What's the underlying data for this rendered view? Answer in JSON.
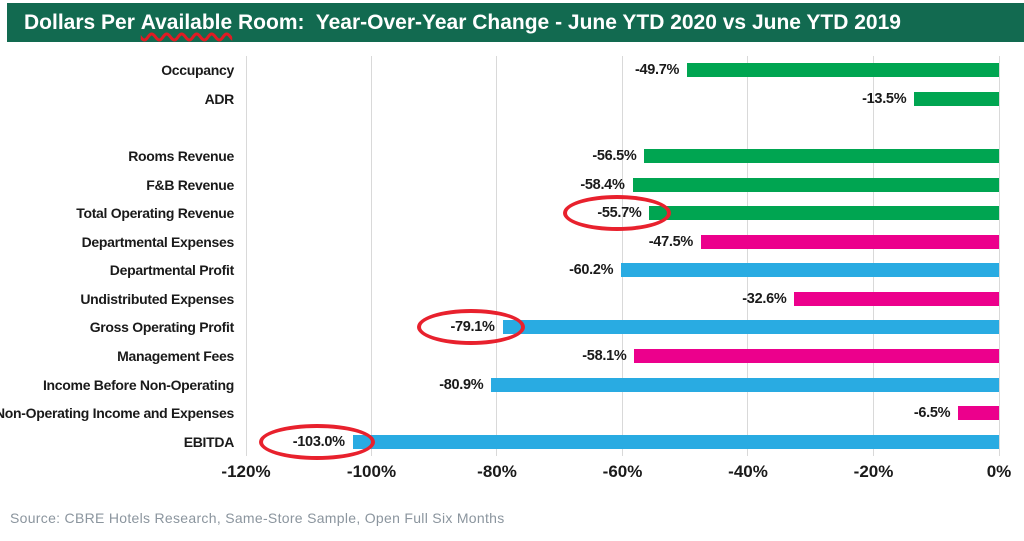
{
  "title_parts": {
    "pre": "Dollars Per ",
    "underlined": "Available",
    "post": " Room:  Year-Over-Year Change - June YTD 2020 vs June YTD 2019"
  },
  "source": "Source: CBRE Hotels Research, Same-Store Sample, Open Full Six Months",
  "colors": {
    "title_bg": "#126A50",
    "title_text": "#FFFFFF",
    "green": "#00A551",
    "pink": "#EC008C",
    "blue": "#29ABE2",
    "highlight_red": "#E8212D",
    "misspell_underline": "#E01B24",
    "gridline": "#D9D9D9",
    "label_text": "#1A1A1A",
    "source_text": "#8B959E"
  },
  "chart_data": {
    "type": "bar",
    "orientation": "horizontal",
    "title": "Dollars Per Available Room: Year-Over-Year Change - June YTD 2020 vs June YTD 2019",
    "xlim": [
      -120,
      0
    ],
    "xticks": [
      "-120%",
      "-100%",
      "-80%",
      "-60%",
      "-40%",
      "-20%",
      "0%"
    ],
    "xtick_values": [
      -120,
      -100,
      -80,
      -60,
      -40,
      -20,
      0
    ],
    "grid": "vertical",
    "legend": "none",
    "gap_after_category": "ADR",
    "rows": [
      {
        "category": "Occupancy",
        "value": -49.7,
        "label": "-49.7%",
        "color": "green",
        "circled": false
      },
      {
        "category": "ADR",
        "value": -13.5,
        "label": "-13.5%",
        "color": "green",
        "circled": false
      },
      {
        "category": "Rooms Revenue",
        "value": -56.5,
        "label": "-56.5%",
        "color": "green",
        "circled": false
      },
      {
        "category": "F&B Revenue",
        "value": -58.4,
        "label": "-58.4%",
        "color": "green",
        "circled": false
      },
      {
        "category": "Total Operating Revenue",
        "value": -55.7,
        "label": "-55.7%",
        "color": "green",
        "circled": true
      },
      {
        "category": "Departmental Expenses",
        "value": -47.5,
        "label": "-47.5%",
        "color": "pink",
        "circled": false
      },
      {
        "category": "Departmental Profit",
        "value": -60.2,
        "label": "-60.2%",
        "color": "blue",
        "circled": false
      },
      {
        "category": "Undistributed Expenses",
        "value": -32.6,
        "label": "-32.6%",
        "color": "pink",
        "circled": false
      },
      {
        "category": "Gross Operating Profit",
        "value": -79.1,
        "label": "-79.1%",
        "color": "blue",
        "circled": true
      },
      {
        "category": "Management Fees",
        "value": -58.1,
        "label": "-58.1%",
        "color": "pink",
        "circled": false
      },
      {
        "category": "Income Before Non-Operating",
        "value": -80.9,
        "label": "-80.9%",
        "color": "blue",
        "circled": false
      },
      {
        "category": "Non-Operating Income and Expenses",
        "value": -6.5,
        "label": "-6.5%",
        "color": "pink",
        "circled": false
      },
      {
        "category": "EBITDA",
        "value": -103.0,
        "label": "-103.0%",
        "color": "blue",
        "circled": true
      }
    ]
  }
}
